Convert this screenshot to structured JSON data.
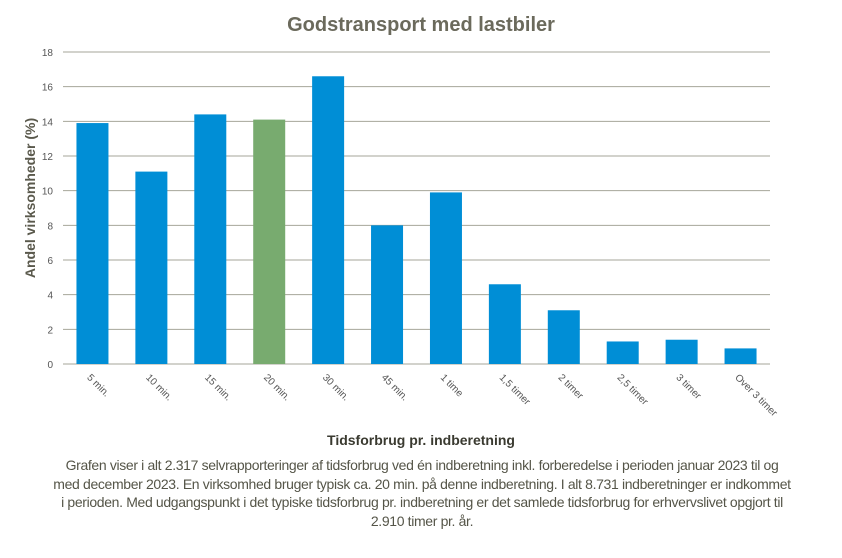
{
  "chart_data": {
    "type": "bar",
    "title": "Godstransport med lastbiler",
    "xlabel": "Tidsforbrug pr. indberetning",
    "ylabel": "Andel virksomheder (%)",
    "ylim": [
      0,
      18
    ],
    "yticks": [
      0,
      2,
      4,
      6,
      8,
      10,
      12,
      14,
      16,
      18
    ],
    "grid": true,
    "categories": [
      "5 min.",
      "10 min.",
      "15 min.",
      "20 min.",
      "30 min.",
      "45 min.",
      "1 time",
      "1,5 timer",
      "2 timer",
      "2,5 timer",
      "3 timer",
      "Over 3 timer"
    ],
    "values": [
      13.9,
      11.1,
      14.4,
      14.1,
      16.6,
      8.0,
      9.9,
      4.6,
      3.1,
      1.3,
      1.4,
      0.9
    ],
    "highlight_category": "20 min.",
    "colors": {
      "bar": "#008ed6",
      "highlight": "#78ab6f",
      "grid": "#a6a69a"
    }
  },
  "note": "Grafen viser i alt 2.317 selvrapporteringer af tidsforbrug ved én indberetning inkl. forberedelse i perioden januar 2023 til og med december 2023. En virksomhed bruger typisk ca. 20 min. på denne indberetning. I alt 8.731 indberetninger er indkommet i perioden. Med udgangspunkt i det typiske tidsforbrug pr. indberetning er det samlede tidsforbrug for erhvervslivet opgjort til 2.910 timer pr. år."
}
